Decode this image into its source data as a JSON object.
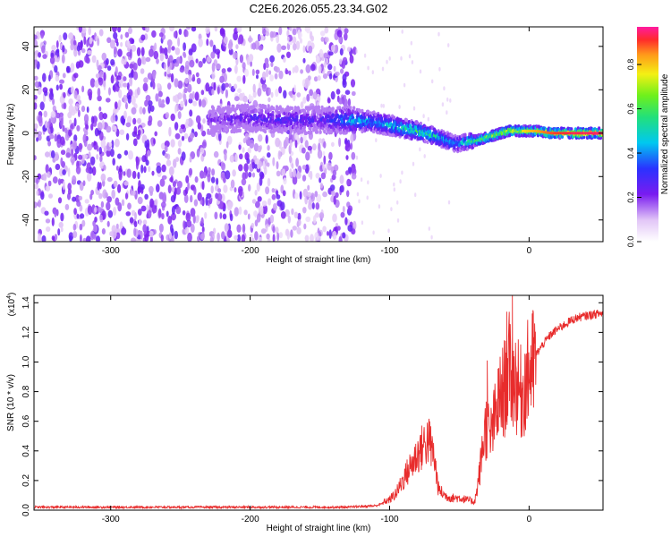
{
  "title": "C2E6.2026.055.23.34.G02",
  "chart_data": [
    {
      "type": "heatmap",
      "xlabel": "Height of straight line (km)",
      "ylabel": "Frequency (Hz)",
      "xlim": [
        -355,
        53
      ],
      "ylim": [
        -50,
        49
      ],
      "xticks": [
        -300,
        -200,
        -100,
        0
      ],
      "yticks": [
        -40,
        -20,
        0,
        20,
        40
      ],
      "colorbar": {
        "label": "Normalized spectral amplitude",
        "range": [
          0.0,
          0.97
        ],
        "ticks": [
          0.0,
          0.2,
          0.4,
          0.6,
          0.8
        ]
      },
      "ridge": {
        "x": [
          -230,
          -200,
          -170,
          -150,
          -125,
          -110,
          -95,
          -80,
          -65,
          -52,
          -45,
          -35,
          -25,
          -15,
          -5,
          5,
          15,
          30,
          50
        ],
        "frequency": [
          6,
          7,
          6,
          6,
          6,
          5,
          3,
          1,
          -2,
          -5,
          -4,
          -3,
          -1,
          1,
          1,
          1,
          0,
          0,
          0
        ],
        "amplitude": [
          0.22,
          0.3,
          0.32,
          0.28,
          0.5,
          0.45,
          0.55,
          0.62,
          0.55,
          0.45,
          0.6,
          0.72,
          0.78,
          0.82,
          0.8,
          0.86,
          0.92,
          0.96,
          0.97
        ]
      }
    },
    {
      "type": "line",
      "xlabel": "Height of straight line (km)",
      "ylabel": "SNR (10 * v/v)",
      "yscale_label": "(x10",
      "yscale_exp": "4",
      "yscale_close": ")",
      "xlim": [
        -355,
        53
      ],
      "ylim": [
        0.0,
        1.45
      ],
      "xticks": [
        -300,
        -200,
        -100,
        0
      ],
      "yticks": [
        0.0,
        0.2,
        0.4,
        0.6,
        0.8,
        1.0,
        1.2,
        1.4
      ],
      "series": [
        {
          "color": "#e82c2c",
          "envelope_x": [
            -355,
            -300,
            -250,
            -200,
            -130,
            -110,
            -100,
            -95,
            -90,
            -85,
            -80,
            -75,
            -72,
            -68,
            -65,
            -60,
            -55,
            -50,
            -45,
            -40,
            -38,
            -35,
            -32,
            -30,
            -28,
            -25,
            -22,
            -20,
            -18,
            -16,
            -14,
            -12,
            -10,
            -8,
            -5,
            -2,
            0,
            5,
            10,
            15,
            20,
            25,
            30,
            35,
            40,
            45,
            53
          ],
          "envelope_y": [
            0.02,
            0.02,
            0.02,
            0.02,
            0.02,
            0.03,
            0.06,
            0.1,
            0.18,
            0.25,
            0.32,
            0.38,
            0.4,
            0.3,
            0.12,
            0.08,
            0.07,
            0.07,
            0.06,
            0.05,
            0.1,
            0.3,
            0.55,
            0.6,
            0.5,
            0.62,
            0.75,
            0.8,
            0.85,
            0.9,
            1.0,
            0.95,
            0.92,
            0.85,
            0.82,
            0.92,
            0.98,
            1.05,
            1.12,
            1.18,
            1.22,
            1.25,
            1.28,
            1.3,
            1.31,
            1.32,
            1.33
          ],
          "peaks": [
            {
              "x": -72,
              "y": 0.57
            },
            {
              "x": -30,
              "y": 1.01
            },
            {
              "x": -16,
              "y": 1.34
            },
            {
              "x": -12,
              "y": 1.45
            }
          ]
        }
      ]
    }
  ]
}
